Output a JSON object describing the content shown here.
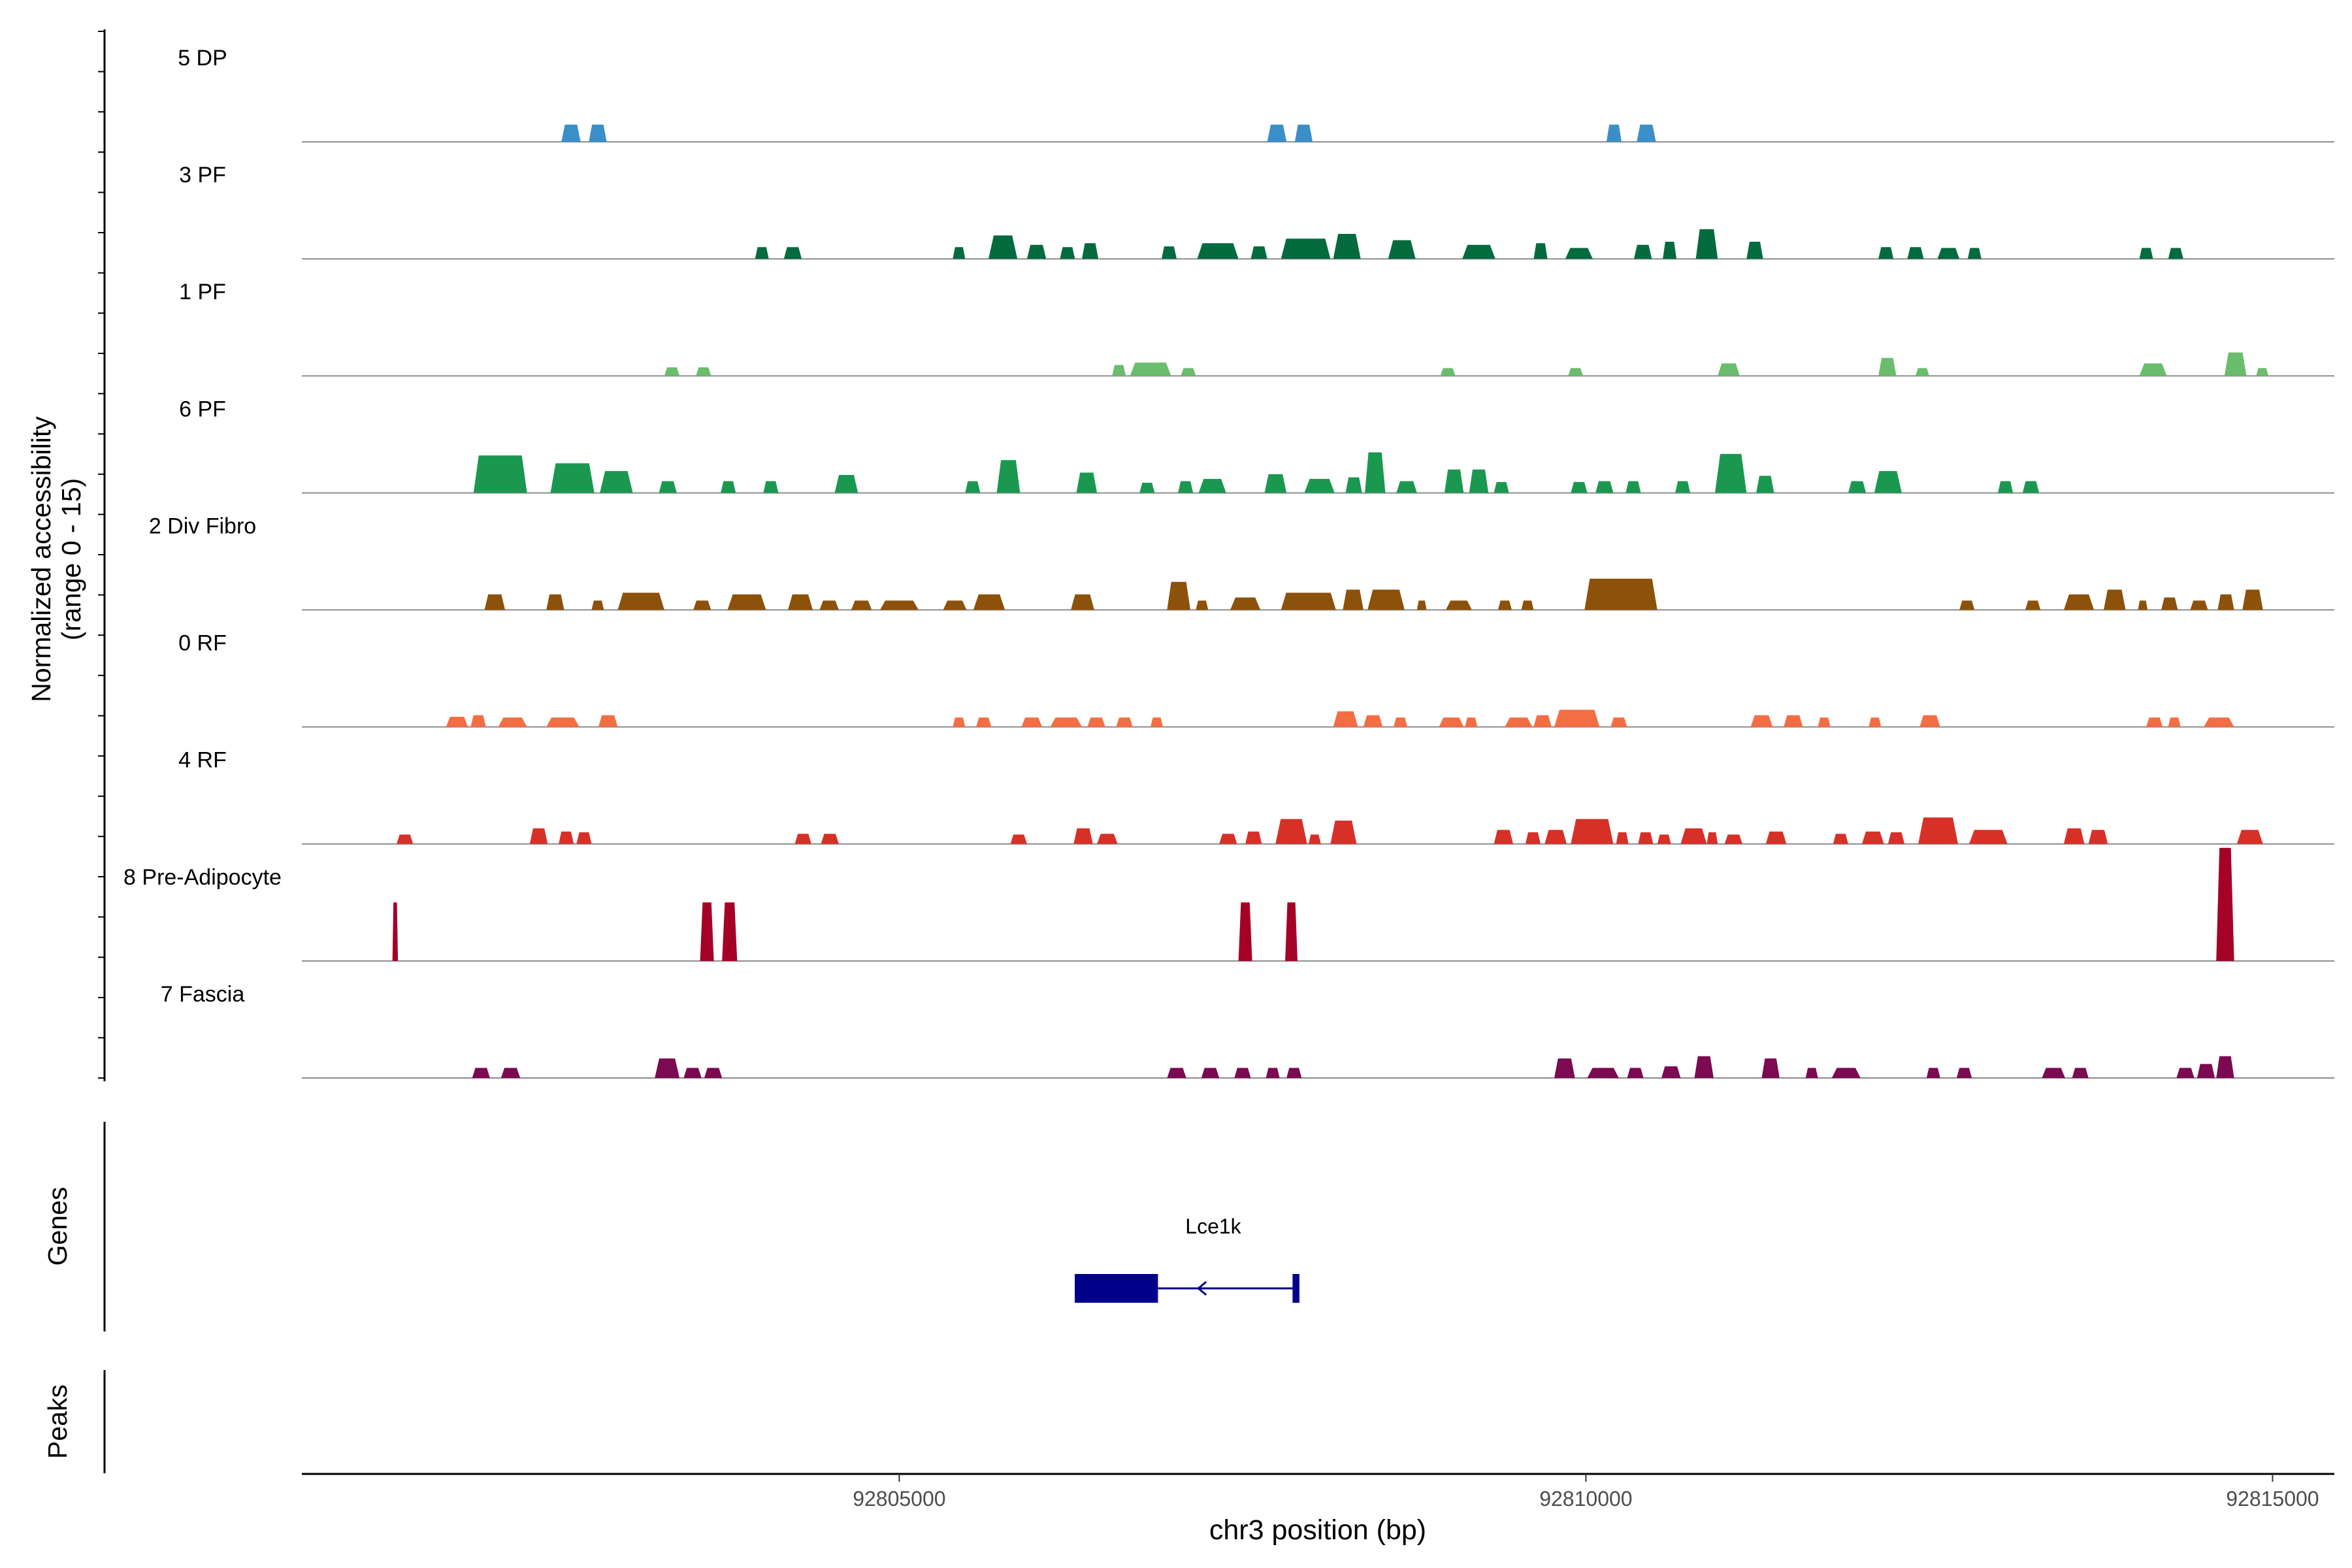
{
  "chart_data": {
    "type": "area",
    "title": "",
    "y_axis_label": "Normalized accessibility",
    "y_axis_sublabel": "(range 0 - 15)",
    "x_axis_label": "chr3 position (bp)",
    "x_range": [
      92800650,
      92815450
    ],
    "y_range": [
      0,
      15
    ],
    "x_ticks": [
      {
        "value": 92805000,
        "label": "92805000"
      },
      {
        "value": 92810000,
        "label": "92810000"
      },
      {
        "value": 92815000,
        "label": "92815000"
      }
    ],
    "genes_label": "Genes",
    "peaks_label": "Peaks",
    "genes": [
      {
        "name": "Lce1k",
        "strand": "-",
        "start": 92806278,
        "end": 92807914,
        "exons": [
          [
            92806278,
            92806884
          ],
          [
            92807864,
            92807914
          ]
        ]
      }
    ],
    "tracks": [
      {
        "name": "5 DP",
        "color": "#3B8FC9",
        "peaks": [
          [
            92802540,
            92802680,
            2.2
          ],
          [
            92802740,
            92802870,
            2.2
          ],
          [
            92807680,
            92807820,
            2.2
          ],
          [
            92807880,
            92808010,
            2.2
          ],
          [
            92810150,
            92810260,
            2.2
          ],
          [
            92810370,
            92810510,
            2.2
          ]
        ]
      },
      {
        "name": "3 PF",
        "color": "#046B3E",
        "peaks": [
          [
            92803950,
            92804050,
            1.5
          ],
          [
            92804160,
            92804290,
            1.5
          ],
          [
            92805390,
            92805480,
            1.5
          ],
          [
            92805650,
            92805860,
            3.0
          ],
          [
            92805930,
            92806070,
            1.8
          ],
          [
            92806170,
            92806280,
            1.5
          ],
          [
            92806330,
            92806450,
            2.0
          ],
          [
            92806910,
            92807020,
            1.6
          ],
          [
            92807170,
            92807470,
            2.0
          ],
          [
            92807560,
            92807680,
            1.6
          ],
          [
            92807780,
            92808140,
            2.6
          ],
          [
            92808160,
            92808360,
            3.2
          ],
          [
            92808560,
            92808760,
            2.4
          ],
          [
            92809100,
            92809340,
            1.8
          ],
          [
            92809620,
            92809720,
            2.0
          ],
          [
            92809850,
            92810050,
            1.4
          ],
          [
            92810350,
            92810480,
            1.8
          ],
          [
            92810560,
            92810660,
            2.2
          ],
          [
            92810800,
            92810960,
            3.8
          ],
          [
            92811170,
            92811290,
            2.2
          ],
          [
            92812130,
            92812240,
            1.5
          ],
          [
            92812340,
            92812460,
            1.5
          ],
          [
            92812560,
            92812720,
            1.4
          ],
          [
            92812780,
            92812880,
            1.4
          ],
          [
            92814030,
            92814130,
            1.4
          ],
          [
            92814240,
            92814350,
            1.4
          ]
        ]
      },
      {
        "name": "1 PF",
        "color": "#69BD6C",
        "peaks": [
          [
            92803290,
            92803400,
            1.1
          ],
          [
            92803520,
            92803630,
            1.1
          ],
          [
            92806550,
            92806650,
            1.4
          ],
          [
            92806680,
            92806980,
            1.7
          ],
          [
            92807050,
            92807160,
            1.0
          ],
          [
            92808940,
            92809050,
            1.0
          ],
          [
            92809870,
            92809980,
            1.0
          ],
          [
            92810960,
            92811120,
            1.6
          ],
          [
            92812130,
            92812260,
            2.3
          ],
          [
            92812400,
            92812500,
            1.0
          ],
          [
            92814030,
            92814230,
            1.6
          ],
          [
            92814650,
            92814810,
            3.0
          ],
          [
            92814880,
            92814970,
            1.0
          ]
        ]
      },
      {
        "name": "6 PF",
        "color": "#1A9850",
        "peaks": [
          [
            92801900,
            92802290,
            4.8
          ],
          [
            92802460,
            92802780,
            3.8
          ],
          [
            92802820,
            92803060,
            2.8
          ],
          [
            92803250,
            92803380,
            1.5
          ],
          [
            92803700,
            92803810,
            1.5
          ],
          [
            92804010,
            92804120,
            1.5
          ],
          [
            92804530,
            92804700,
            2.3
          ],
          [
            92805480,
            92805590,
            1.5
          ],
          [
            92805710,
            92805880,
            4.2
          ],
          [
            92806290,
            92806440,
            2.6
          ],
          [
            92806750,
            92806860,
            1.3
          ],
          [
            92807030,
            92807140,
            1.5
          ],
          [
            92807180,
            92807380,
            1.8
          ],
          [
            92807660,
            92807820,
            2.4
          ],
          [
            92807950,
            92808170,
            1.8
          ],
          [
            92808250,
            92808370,
            2.0
          ],
          [
            92808390,
            92808540,
            5.2
          ],
          [
            92808620,
            92808770,
            1.5
          ],
          [
            92808970,
            92809110,
            3.0
          ],
          [
            92809150,
            92809290,
            3.0
          ],
          [
            92809330,
            92809440,
            1.4
          ],
          [
            92809890,
            92810010,
            1.4
          ],
          [
            92810070,
            92810200,
            1.5
          ],
          [
            92810290,
            92810400,
            1.5
          ],
          [
            92810650,
            92810760,
            1.5
          ],
          [
            92810940,
            92811170,
            5.0
          ],
          [
            92811240,
            92811370,
            2.2
          ],
          [
            92811910,
            92812040,
            1.5
          ],
          [
            92812100,
            92812300,
            2.8
          ],
          [
            92813000,
            92813110,
            1.5
          ],
          [
            92813180,
            92813300,
            1.5
          ]
        ]
      },
      {
        "name": "2 Div Fibro",
        "color": "#8C510A",
        "peaks": [
          [
            92801980,
            92802130,
            2.0
          ],
          [
            92802430,
            92802560,
            2.0
          ],
          [
            92802760,
            92802850,
            1.2
          ],
          [
            92802950,
            92803290,
            2.2
          ],
          [
            92803500,
            92803630,
            1.2
          ],
          [
            92803750,
            92804030,
            2.0
          ],
          [
            92804190,
            92804370,
            2.0
          ],
          [
            92804420,
            92804560,
            1.2
          ],
          [
            92804650,
            92804800,
            1.2
          ],
          [
            92804860,
            92805140,
            1.2
          ],
          [
            92805320,
            92805490,
            1.2
          ],
          [
            92805540,
            92805770,
            2.0
          ],
          [
            92806250,
            92806420,
            2.0
          ],
          [
            92806950,
            92807120,
            3.6
          ],
          [
            92807160,
            92807250,
            1.2
          ],
          [
            92807410,
            92807630,
            1.6
          ],
          [
            92807780,
            92808180,
            2.2
          ],
          [
            92808230,
            92808380,
            2.6
          ],
          [
            92808410,
            92808680,
            2.6
          ],
          [
            92808770,
            92808840,
            1.2
          ],
          [
            92808980,
            92809170,
            1.2
          ],
          [
            92809360,
            92809460,
            1.2
          ],
          [
            92809530,
            92809620,
            1.2
          ],
          [
            92809990,
            92810520,
            4.0
          ],
          [
            92812720,
            92812830,
            1.2
          ],
          [
            92813200,
            92813310,
            1.2
          ],
          [
            92813480,
            92813700,
            2.0
          ],
          [
            92813770,
            92813930,
            2.6
          ],
          [
            92814020,
            92814090,
            1.2
          ],
          [
            92814190,
            92814310,
            1.6
          ],
          [
            92814400,
            92814530,
            1.2
          ],
          [
            92814600,
            92814720,
            2.0
          ],
          [
            92814780,
            92814930,
            2.6
          ]
        ]
      },
      {
        "name": "0 RF",
        "color": "#F46D43",
        "peaks": [
          [
            92801700,
            92801860,
            1.3
          ],
          [
            92801880,
            92801990,
            1.5
          ],
          [
            92802080,
            92802290,
            1.2
          ],
          [
            92802430,
            92802670,
            1.2
          ],
          [
            92802810,
            92802950,
            1.5
          ],
          [
            92805390,
            92805480,
            1.2
          ],
          [
            92805560,
            92805670,
            1.2
          ],
          [
            92805890,
            92806040,
            1.2
          ],
          [
            92806100,
            92806330,
            1.2
          ],
          [
            92806370,
            92806500,
            1.2
          ],
          [
            92806580,
            92806700,
            1.2
          ],
          [
            92806830,
            92806920,
            1.2
          ],
          [
            92808160,
            92808340,
            2.0
          ],
          [
            92808380,
            92808520,
            1.5
          ],
          [
            92808600,
            92808700,
            1.2
          ],
          [
            92808930,
            92809110,
            1.2
          ],
          [
            92809120,
            92809210,
            1.2
          ],
          [
            92809410,
            92809610,
            1.2
          ],
          [
            92809620,
            92809750,
            1.5
          ],
          [
            92809770,
            92810100,
            2.2
          ],
          [
            92810180,
            92810300,
            1.2
          ],
          [
            92811200,
            92811360,
            1.5
          ],
          [
            92811440,
            92811580,
            1.5
          ],
          [
            92811690,
            92811780,
            1.2
          ],
          [
            92812060,
            92812150,
            1.2
          ],
          [
            92812430,
            92812580,
            1.5
          ],
          [
            92814080,
            92814200,
            1.2
          ],
          [
            92814240,
            92814330,
            1.2
          ],
          [
            92814500,
            92814720,
            1.2
          ]
        ]
      },
      {
        "name": "4 RF",
        "color": "#D73027",
        "peaks": [
          [
            92801340,
            92801460,
            1.2
          ],
          [
            92802310,
            92802440,
            2.0
          ],
          [
            92802520,
            92802630,
            1.6
          ],
          [
            92802650,
            92802760,
            1.5
          ],
          [
            92804240,
            92804360,
            1.3
          ],
          [
            92804430,
            92804560,
            1.3
          ],
          [
            92805810,
            92805930,
            1.2
          ],
          [
            92806270,
            92806410,
            2.0
          ],
          [
            92806440,
            92806590,
            1.3
          ],
          [
            92807330,
            92807460,
            1.3
          ],
          [
            92807520,
            92807640,
            1.6
          ],
          [
            92807740,
            92807970,
            3.2
          ],
          [
            92807980,
            92808070,
            1.2
          ],
          [
            92808140,
            92808330,
            3.0
          ],
          [
            92809330,
            92809470,
            1.8
          ],
          [
            92809560,
            92809670,
            1.5
          ],
          [
            92809700,
            92809860,
            1.8
          ],
          [
            92809890,
            92810200,
            3.2
          ],
          [
            92810220,
            92810310,
            1.5
          ],
          [
            92810380,
            92810490,
            1.5
          ],
          [
            92810520,
            92810620,
            1.2
          ],
          [
            92810690,
            92810880,
            2.0
          ],
          [
            92810880,
            92810960,
            1.5
          ],
          [
            92811010,
            92811140,
            1.2
          ],
          [
            92811310,
            92811460,
            1.6
          ],
          [
            92811800,
            92811910,
            1.3
          ],
          [
            92812010,
            92812170,
            1.6
          ],
          [
            92812200,
            92812320,
            1.5
          ],
          [
            92812420,
            92812710,
            3.4
          ],
          [
            92812790,
            92813070,
            1.8
          ],
          [
            92813480,
            92813630,
            2.0
          ],
          [
            92813660,
            92813800,
            1.8
          ],
          [
            92814740,
            92814930,
            1.8
          ]
        ]
      },
      {
        "name": "8 Pre-Adipocyte",
        "color": "#A50026",
        "peaks": [
          [
            92801310,
            92801350,
            7.5
          ],
          [
            92803550,
            92803650,
            7.5
          ],
          [
            92803710,
            92803820,
            7.5
          ],
          [
            92807470,
            92807570,
            7.5
          ],
          [
            92807810,
            92807900,
            7.5
          ],
          [
            92814590,
            92814720,
            14.5
          ]
        ]
      },
      {
        "name": "7 Fascia",
        "color": "#7B0A52",
        "peaks": [
          [
            92801890,
            92802020,
            1.3
          ],
          [
            92802100,
            92802240,
            1.3
          ],
          [
            92803220,
            92803400,
            2.5
          ],
          [
            92803430,
            92803560,
            1.3
          ],
          [
            92803580,
            92803710,
            1.3
          ],
          [
            92806950,
            92807090,
            1.3
          ],
          [
            92807200,
            92807330,
            1.3
          ],
          [
            92807440,
            92807560,
            1.3
          ],
          [
            92807670,
            92807770,
            1.3
          ],
          [
            92807820,
            92807930,
            1.3
          ],
          [
            92809770,
            92809920,
            2.5
          ],
          [
            92810010,
            92810240,
            1.3
          ],
          [
            92810300,
            92810420,
            1.3
          ],
          [
            92810550,
            92810690,
            1.5
          ],
          [
            92810790,
            92810930,
            2.8
          ],
          [
            92811280,
            92811410,
            2.5
          ],
          [
            92811600,
            92811690,
            1.3
          ],
          [
            92811790,
            92812000,
            1.3
          ],
          [
            92812480,
            92812580,
            1.3
          ],
          [
            92812700,
            92812810,
            1.3
          ],
          [
            92813320,
            92813490,
            1.3
          ],
          [
            92813540,
            92813660,
            1.3
          ],
          [
            92814300,
            92814430,
            1.3
          ],
          [
            92814450,
            92814580,
            1.8
          ],
          [
            92814590,
            92814720,
            2.8
          ]
        ]
      }
    ]
  }
}
